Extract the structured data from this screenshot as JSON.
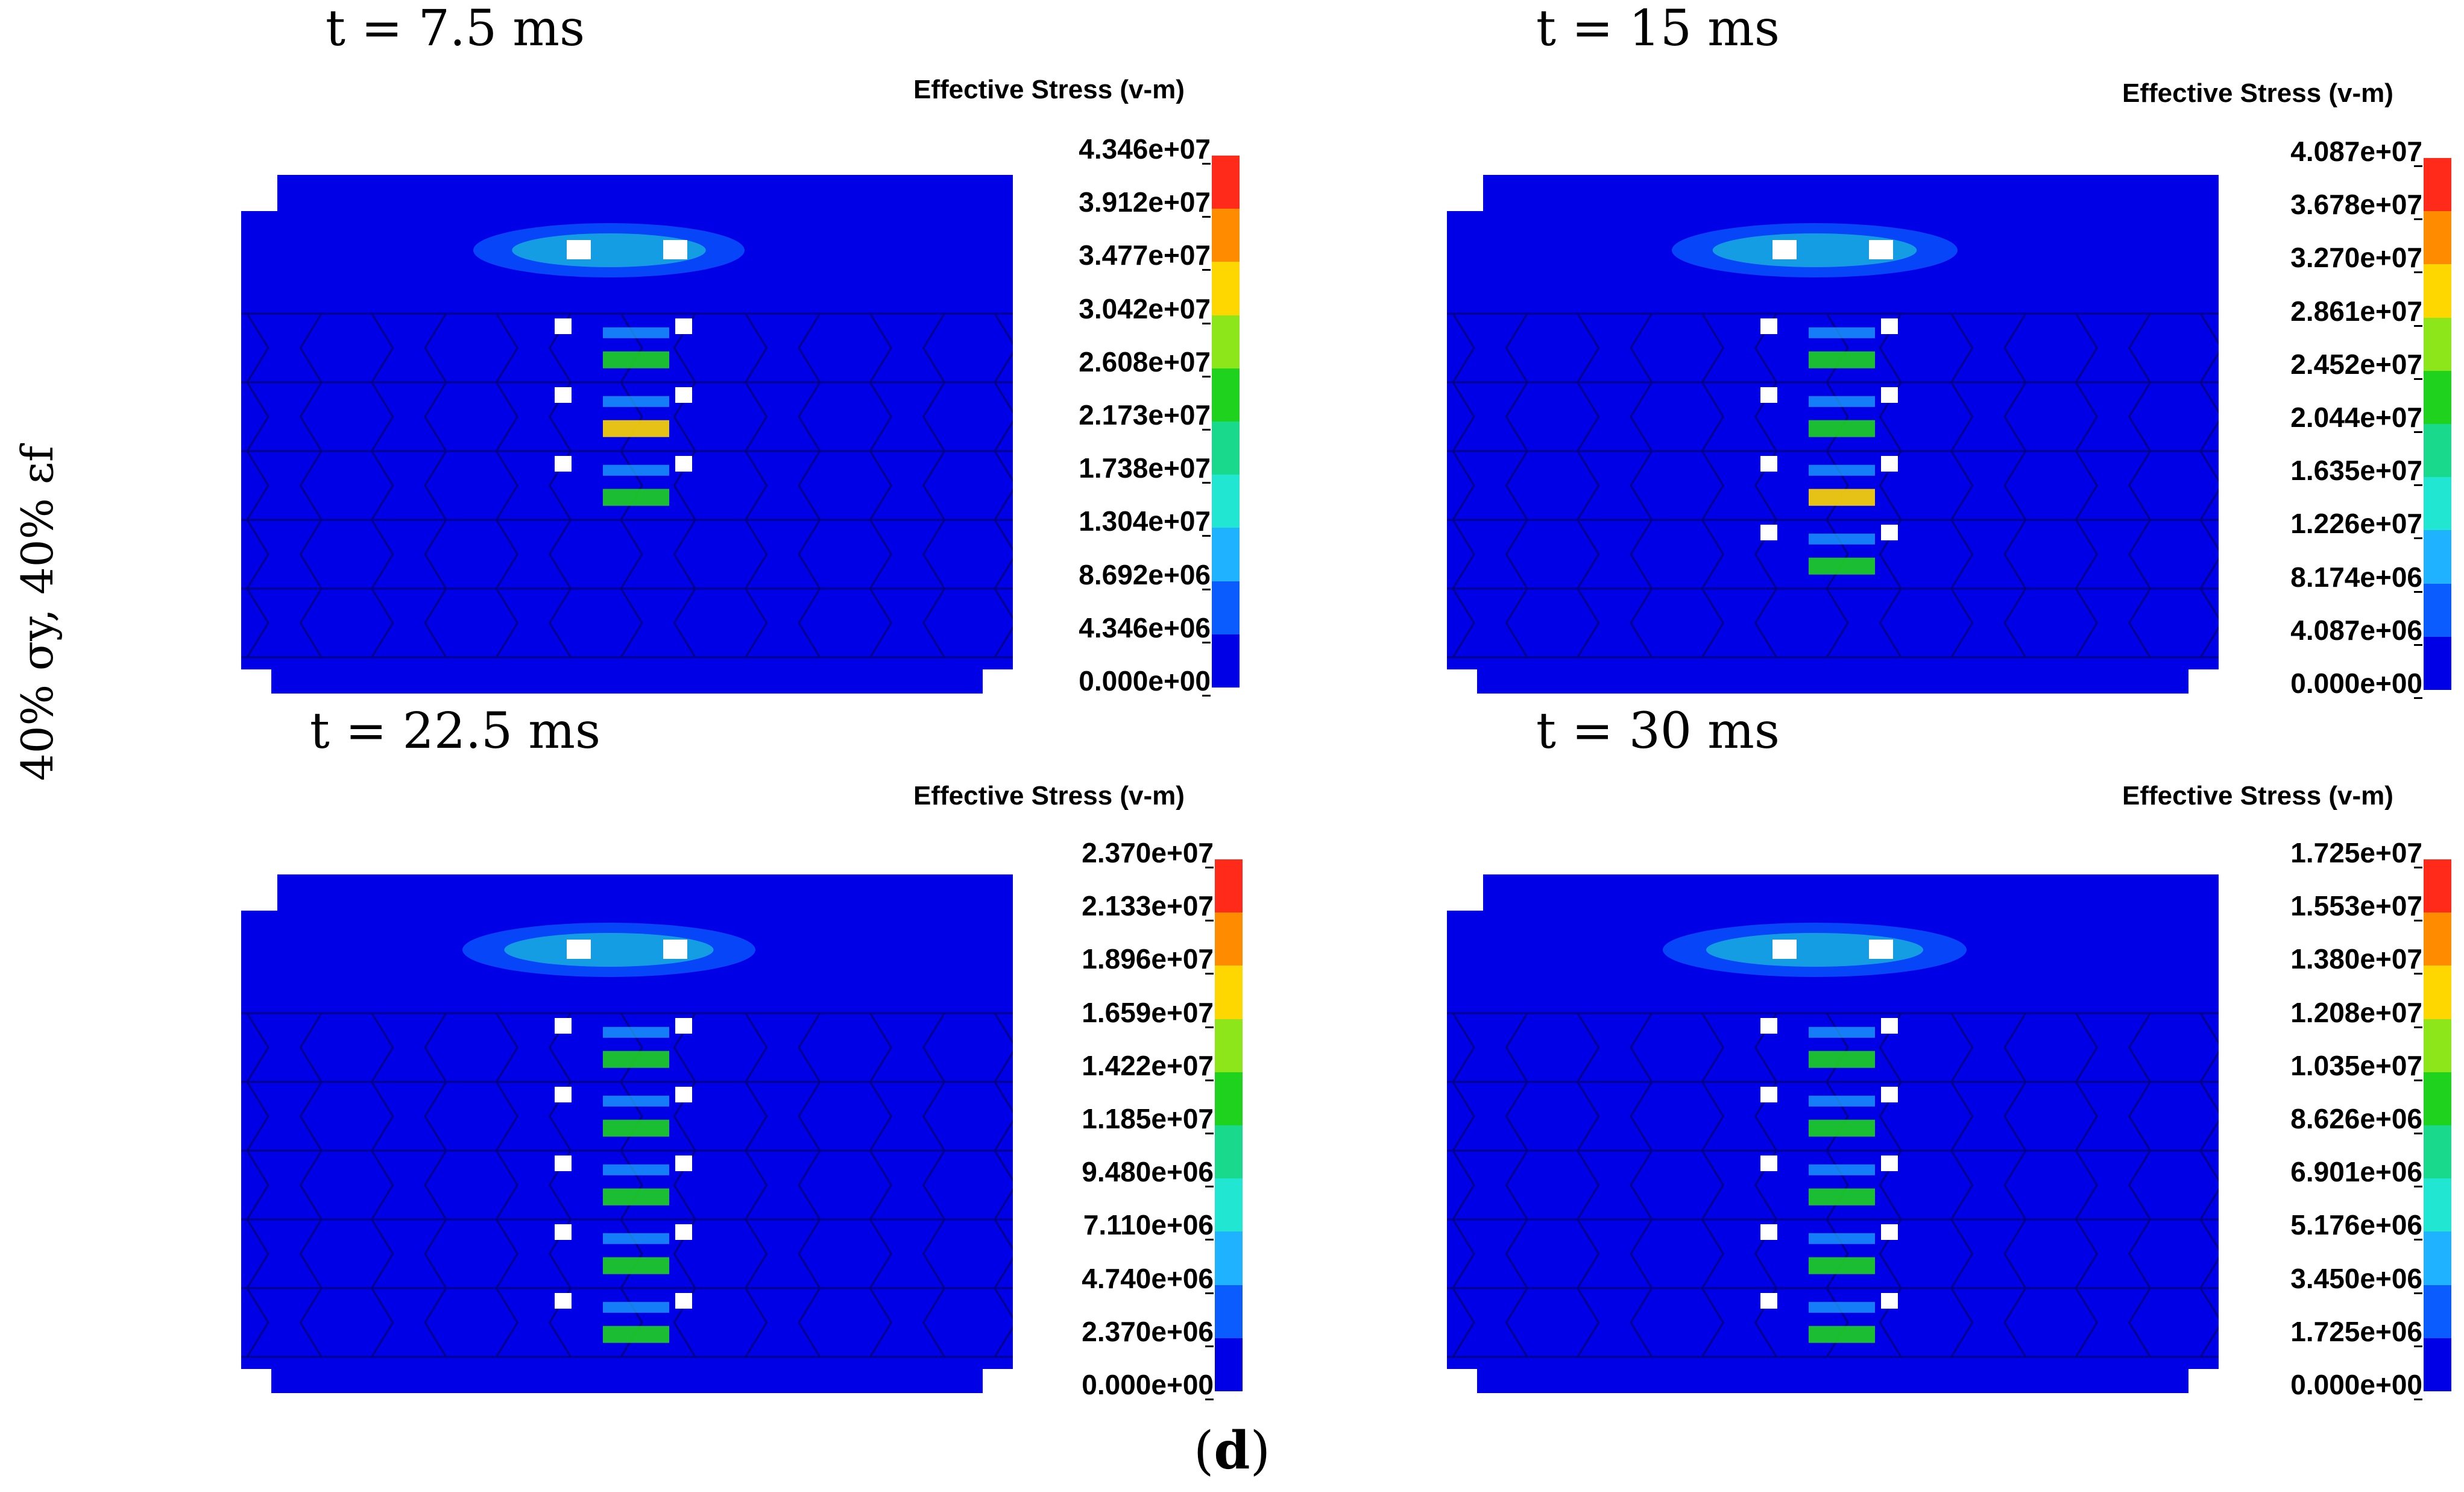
{
  "y_axis_label": "40% σy, 40% εf",
  "caption_letter": "d",
  "colormap": [
    "#0000e6",
    "#0a5cff",
    "#1fb2ff",
    "#21e6d2",
    "#19d98c",
    "#1ed21e",
    "#8ce619",
    "#ffd700",
    "#ff8c00",
    "#ff2a1a"
  ],
  "panels": [
    {
      "time": "t = 7.5 ms",
      "legend_title": "Effective Stress (v-m)",
      "ticks": [
        "4.346e+07",
        "3.912e+07",
        "3.477e+07",
        "3.042e+07",
        "2.608e+07",
        "2.173e+07",
        "1.738e+07",
        "1.304e+07",
        "8.692e+06",
        "4.346e+06",
        "0.000e+00"
      ]
    },
    {
      "time": "t = 15 ms",
      "legend_title": "Effective Stress (v-m)",
      "ticks": [
        "4.087e+07",
        "3.678e+07",
        "3.270e+07",
        "2.861e+07",
        "2.452e+07",
        "2.044e+07",
        "1.635e+07",
        "1.226e+07",
        "8.174e+06",
        "4.087e+06",
        "0.000e+00"
      ]
    },
    {
      "time": "t = 22.5 ms",
      "legend_title": "Effective Stress (v-m)",
      "ticks": [
        "2.370e+07",
        "2.133e+07",
        "1.896e+07",
        "1.659e+07",
        "1.422e+07",
        "1.185e+07",
        "9.480e+06",
        "7.110e+06",
        "4.740e+06",
        "2.370e+06",
        "0.000e+00"
      ]
    },
    {
      "time": "t = 30 ms",
      "legend_title": "Effective Stress (v-m)",
      "ticks": [
        "1.725e+07",
        "1.553e+07",
        "1.380e+07",
        "1.208e+07",
        "1.035e+07",
        "8.626e+06",
        "6.901e+06",
        "5.176e+06",
        "3.450e+06",
        "1.725e+06",
        "0.000e+00"
      ]
    }
  ]
}
